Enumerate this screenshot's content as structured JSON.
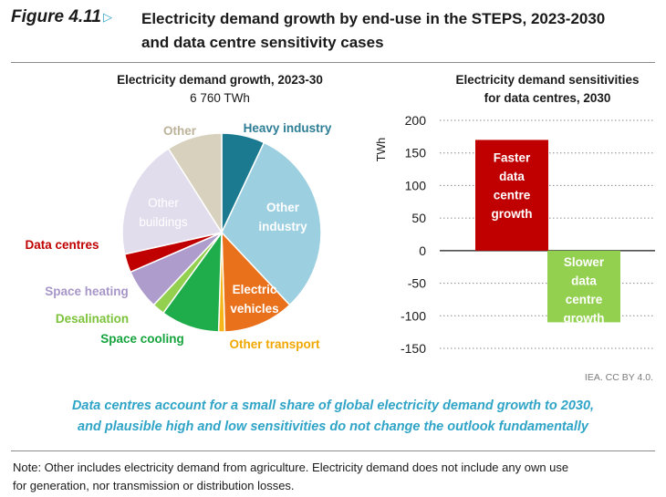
{
  "figure": {
    "number": "Figure 4.11",
    "marker": "▷",
    "title_line1": "Electricity demand growth by end-use in the STEPS, 2023-2030",
    "title_line2": "and data centre sensitivity cases",
    "caption_line1": "Data centres account for a small share of global electricity demand growth to 2030,",
    "caption_line2": "and plausible high and low sensitivities do not change the outlook fundamentally",
    "credit": "IEA. CC BY 4.0.",
    "note_line1": "Note: Other includes electricity demand from agriculture. Electricity demand does not include any own use",
    "note_line2": "for generation, nor transmission or distribution losses."
  },
  "chart_data": [
    {
      "type": "pie",
      "title": "Electricity demand growth, 2023-30",
      "subtitle": "6 760 TWh",
      "slices": [
        {
          "label": "Heavy industry",
          "value": 7.0,
          "color": "#1b7a8f"
        },
        {
          "label": "Other industry",
          "value": 31.0,
          "color": "#9ccfe0"
        },
        {
          "label": "Electric vehicles",
          "value": 11.5,
          "color": "#e9711c"
        },
        {
          "label": "Other transport",
          "value": 1.0,
          "color": "#f6b619"
        },
        {
          "label": "Space cooling",
          "value": 9.5,
          "color": "#1fac4b"
        },
        {
          "label": "Desalination",
          "value": 2.0,
          "color": "#93d050"
        },
        {
          "label": "Space heating",
          "value": 6.5,
          "color": "#ae9dcc"
        },
        {
          "label": "Data centres",
          "value": 3.0,
          "color": "#c00000"
        },
        {
          "label": "Other buildings",
          "value": 19.5,
          "color": "#e2ddec"
        },
        {
          "label": "Other",
          "value": 9.0,
          "color": "#d7d1be"
        }
      ]
    },
    {
      "type": "bar",
      "title_line1": "Electricity demand sensitivities",
      "title_line2": "for data centres, 2030",
      "ylabel": "TWh",
      "ylim": [
        -150,
        200
      ],
      "yticks": [
        200,
        150,
        100,
        50,
        0,
        -50,
        -100,
        -150
      ],
      "grid": true,
      "bars": [
        {
          "label": "Faster data centre growth",
          "label_lines": [
            "Faster",
            "data",
            "centre",
            "growth"
          ],
          "value": 170,
          "color": "#c00000"
        },
        {
          "label": "Slower data centre growth",
          "label_lines": [
            "Slower",
            "data",
            "centre",
            "growth"
          ],
          "value": -110,
          "color": "#93d050"
        }
      ]
    }
  ]
}
